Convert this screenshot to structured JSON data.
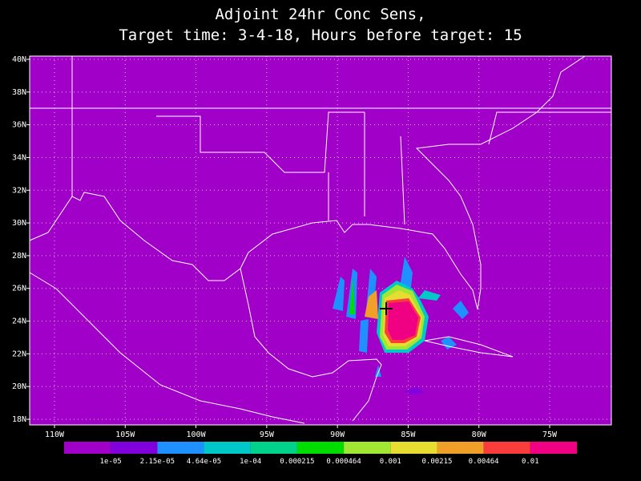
{
  "header": {
    "title_line1": "Adjoint 24hr Conc Sens,",
    "title_line2": "Target time: 3-4-18, Hours before target: 15"
  },
  "map": {
    "lat_labels": [
      "40N",
      "38N",
      "36N",
      "34N",
      "32N",
      "30N",
      "28N",
      "26N",
      "24N",
      "22N",
      "20N",
      "18N"
    ],
    "lon_labels": [
      "110W",
      "105W",
      "100W",
      "95W",
      "90W",
      "85W",
      "80W",
      "75W"
    ]
  },
  "colorbar": {
    "colors": [
      "#a000c8",
      "#8200dc",
      "#1e90ff",
      "#00c8c8",
      "#00d28c",
      "#00dc00",
      "#a0e632",
      "#e6dc32",
      "#f0a028",
      "#fa3c3c",
      "#f00082"
    ],
    "labels": [
      "1e-05",
      "2.15e-05",
      "4.64e-05",
      "1e-04",
      "0.000215",
      "0.000464",
      "0.001",
      "0.00215",
      "0.00464",
      "0.01"
    ]
  }
}
